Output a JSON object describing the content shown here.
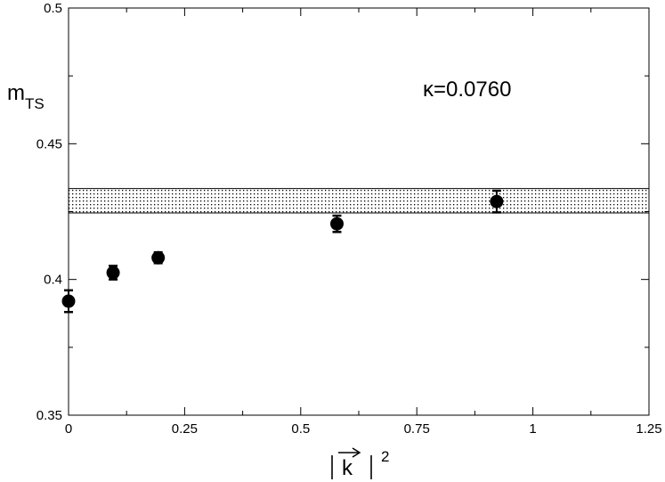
{
  "chart_data": {
    "type": "scatter",
    "title": "",
    "annotation": "κ=0.0760",
    "ylabel": {
      "main": "m",
      "sub": "TS"
    },
    "xlabel": {
      "vector": "k",
      "exponent": "2"
    },
    "xlim": [
      0,
      1.25
    ],
    "ylim": [
      0.35,
      0.5
    ],
    "x_ticks": [
      0,
      0.25,
      0.5,
      0.75,
      1,
      1.25
    ],
    "x_tick_labels": [
      "0",
      "0.25",
      "0.5",
      "0.75",
      "1",
      "1.25"
    ],
    "y_ticks": [
      0.35,
      0.4,
      0.45,
      0.5
    ],
    "y_tick_labels": [
      "0.35",
      "0.4",
      "0.45",
      "0.5"
    ],
    "grid": false,
    "series": [
      {
        "points": [
          {
            "x": 0.0,
            "y": 0.392,
            "err": 0.004
          },
          {
            "x": 0.096,
            "y": 0.4025,
            "err": 0.0025
          },
          {
            "x": 0.193,
            "y": 0.408,
            "err": 0.002
          },
          {
            "x": 0.578,
            "y": 0.4205,
            "err": 0.003
          },
          {
            "x": 0.922,
            "y": 0.4287,
            "err": 0.004
          }
        ]
      }
    ],
    "band": {
      "ymin": 0.4245,
      "ymax": 0.4335,
      "pattern": "dotted"
    }
  }
}
